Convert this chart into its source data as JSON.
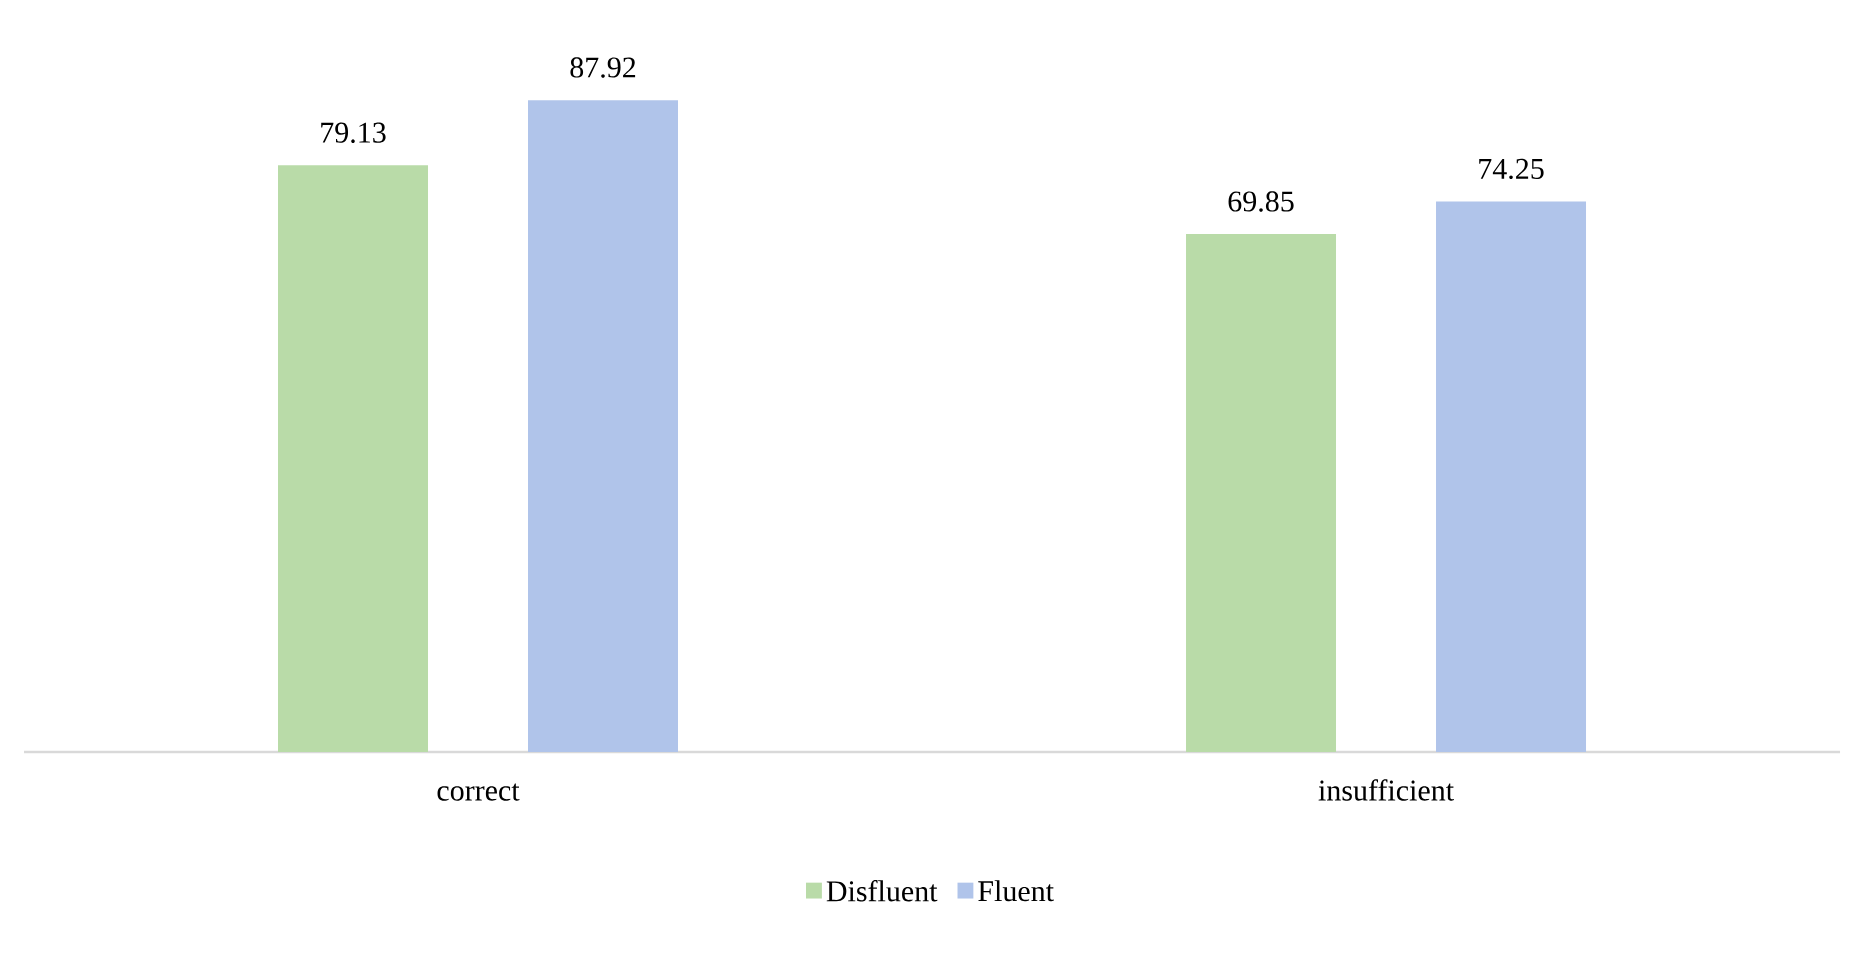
{
  "chart_data": {
    "type": "bar",
    "categories": [
      "correct",
      "insufficient"
    ],
    "series": [
      {
        "name": "Disfluent",
        "color": "#b9dba8",
        "values": [
          79.13,
          69.85
        ],
        "value_labels": [
          "79.13",
          "69.85"
        ]
      },
      {
        "name": "Fluent",
        "color": "#b0c4ea",
        "values": [
          87.92,
          74.25
        ],
        "value_labels": [
          "87.92",
          "74.25"
        ]
      }
    ],
    "tick_labels": "x",
    "legend": "bottom"
  }
}
